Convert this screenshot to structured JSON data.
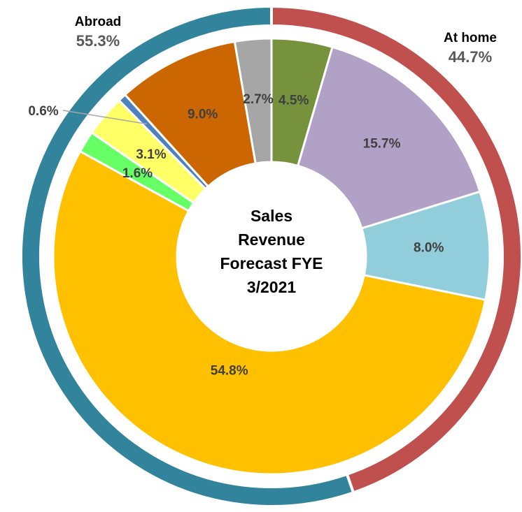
{
  "chart_data": {
    "type": "nested-donut",
    "title": "Sales Revenue Forecast FYE 3/2021",
    "outer": {
      "categories": [
        "At home",
        "Abroad"
      ],
      "values": [
        44.7,
        55.3
      ],
      "value_labels": [
        "44.7%",
        "55.3%"
      ],
      "colors": [
        "#c0504d",
        "#31849b"
      ]
    },
    "inner": {
      "values": [
        4.5,
        15.7,
        8.0,
        54.8,
        1.6,
        3.1,
        0.6,
        9.0,
        2.7
      ],
      "value_labels": [
        "4.5%",
        "15.7%",
        "8.0%",
        "54.8%",
        "1.6%",
        "3.1%",
        "0.6%",
        "9.0%",
        "2.7%"
      ],
      "colors": [
        "#76923c",
        "#b2a1c7",
        "#92cddc",
        "#ffc000",
        "#66ff66",
        "#ffff66",
        "#4f81bd",
        "#cc6600",
        "#a6a6a6"
      ]
    }
  }
}
